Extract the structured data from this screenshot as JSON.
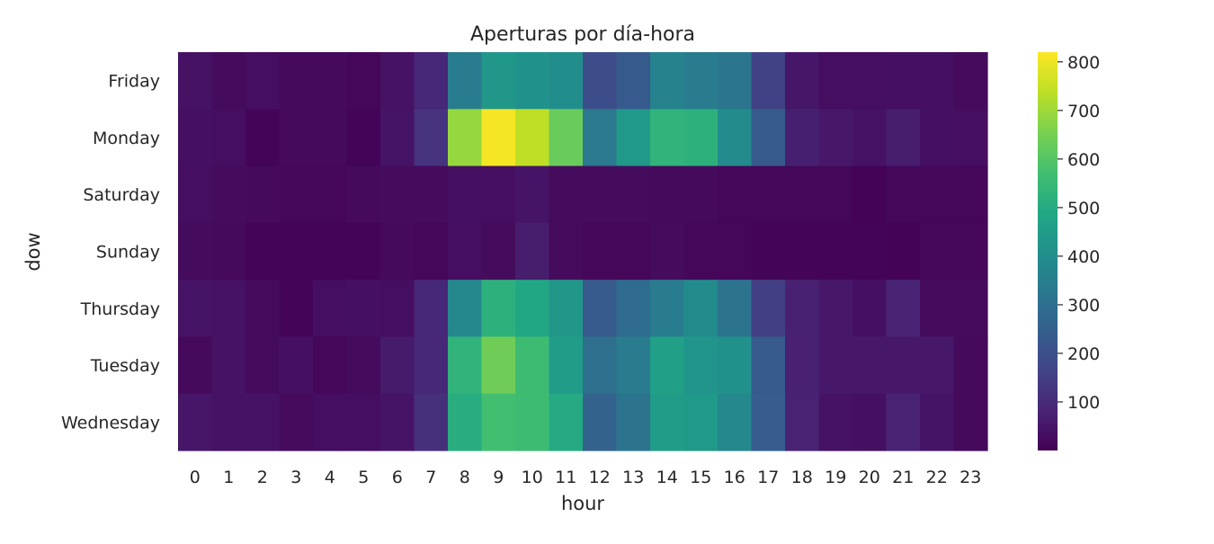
{
  "chart_data": {
    "type": "heatmap",
    "title": "Aperturas por día-hora",
    "xlabel": "hour",
    "ylabel": "dow",
    "x": [
      "0",
      "1",
      "2",
      "3",
      "4",
      "5",
      "6",
      "7",
      "8",
      "9",
      "10",
      "11",
      "12",
      "13",
      "14",
      "15",
      "16",
      "17",
      "18",
      "19",
      "20",
      "21",
      "22",
      "23"
    ],
    "y": [
      "Friday",
      "Monday",
      "Saturday",
      "Sunday",
      "Thursday",
      "Tuesday",
      "Wednesday"
    ],
    "values": [
      [
        40,
        25,
        30,
        20,
        20,
        15,
        40,
        90,
        340,
        430,
        410,
        400,
        190,
        230,
        360,
        340,
        320,
        160,
        50,
        30,
        30,
        35,
        35,
        25
      ],
      [
        35,
        30,
        10,
        20,
        20,
        10,
        45,
        120,
        690,
        810,
        740,
        630,
        330,
        440,
        530,
        520,
        390,
        230,
        70,
        55,
        40,
        65,
        35,
        30
      ],
      [
        30,
        25,
        20,
        15,
        15,
        20,
        25,
        25,
        35,
        30,
        45,
        25,
        25,
        25,
        20,
        20,
        15,
        15,
        15,
        15,
        5,
        15,
        15,
        15
      ],
      [
        25,
        20,
        10,
        10,
        10,
        10,
        20,
        15,
        30,
        25,
        65,
        25,
        15,
        15,
        25,
        15,
        15,
        10,
        10,
        10,
        10,
        5,
        15,
        15
      ],
      [
        45,
        40,
        25,
        10,
        30,
        35,
        30,
        90,
        380,
        520,
        490,
        430,
        230,
        290,
        340,
        390,
        310,
        150,
        75,
        55,
        35,
        80,
        25,
        25
      ],
      [
        20,
        40,
        25,
        35,
        15,
        25,
        60,
        90,
        530,
        640,
        560,
        450,
        300,
        340,
        460,
        420,
        410,
        230,
        75,
        55,
        55,
        55,
        55,
        20
      ],
      [
        50,
        40,
        40,
        25,
        30,
        30,
        45,
        110,
        510,
        570,
        560,
        500,
        260,
        310,
        450,
        440,
        380,
        240,
        80,
        40,
        35,
        80,
        45,
        20
      ]
    ],
    "vmin": 0,
    "vmax": 820,
    "colormap": "viridis",
    "colorbar_ticks": [
      100,
      200,
      300,
      400,
      500,
      600,
      700,
      800
    ]
  }
}
